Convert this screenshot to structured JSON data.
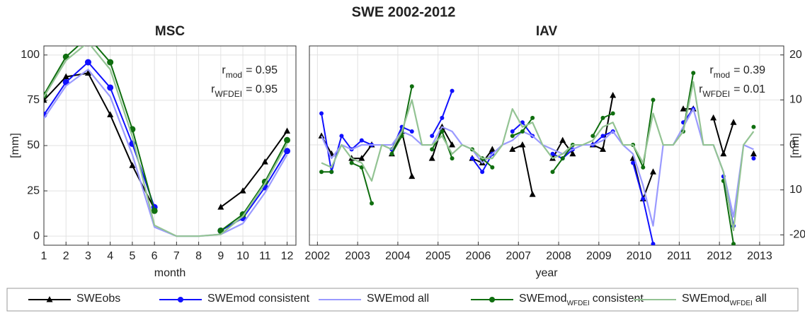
{
  "title": "SWE 2002-2012",
  "chart_data": [
    {
      "type": "line",
      "title": "MSC",
      "xlabel": "month",
      "ylabel": "[mm]",
      "yaxis": "left",
      "grid": true,
      "xlim": [
        1,
        12.4
      ],
      "ylim": [
        -5,
        105
      ],
      "xticks": [
        1,
        2,
        3,
        4,
        5,
        6,
        7,
        8,
        9,
        10,
        11,
        12
      ],
      "yticks": [
        0,
        25,
        50,
        75,
        100
      ],
      "annotations": [
        {
          "text": "r",
          "sub": "mod",
          "rest": "= 0.95"
        },
        {
          "text": "r",
          "sub": "WFDEI",
          "rest": "= 0.95"
        }
      ],
      "x": [
        1,
        2,
        3,
        4,
        5,
        6,
        7,
        8,
        9,
        10,
        11,
        12
      ],
      "series": [
        {
          "name": "SWEobs",
          "color": "#000000",
          "marker": "triangle",
          "values": [
            75,
            88,
            90,
            67,
            39,
            15,
            null,
            null,
            16,
            25,
            41,
            58
          ]
        },
        {
          "name": "SWEmod consistent",
          "color": "#1010ff",
          "marker": "circle",
          "values": [
            67,
            85,
            96,
            82,
            51,
            16,
            null,
            null,
            3,
            10,
            27,
            47
          ]
        },
        {
          "name": "SWEmod all",
          "color": "#9a9aff",
          "values": [
            65,
            83,
            92,
            77,
            45,
            5,
            0,
            0,
            1,
            7,
            24,
            45
          ]
        },
        {
          "name": "SWEmod",
          "name_sub": "WFDEI",
          "name_rest": "consistent",
          "color": "#0f6e0f",
          "marker": "circle",
          "values": [
            78,
            99,
            110,
            96,
            59,
            14,
            null,
            null,
            3,
            12,
            30,
            53
          ]
        },
        {
          "name": "SWEmod",
          "name_sub": "WFDEI",
          "name_rest": "all",
          "color": "#93c393",
          "values": [
            77,
            97,
            107,
            92,
            55,
            6,
            0,
            0,
            1,
            11,
            29,
            51
          ]
        }
      ]
    },
    {
      "type": "line",
      "title": "IAV",
      "xlabel": "year",
      "ylabel": "[mm]",
      "yaxis": "right",
      "grid": true,
      "xlim": [
        2001.8,
        2013.6
      ],
      "ylim": [
        -22.3,
        22
      ],
      "xticks": [
        2002,
        2003,
        2004,
        2005,
        2006,
        2007,
        2008,
        2009,
        2010,
        2011,
        2012,
        2013
      ],
      "yticks": [
        -20,
        {
          "value": -10,
          "label": "10"
        },
        0,
        10,
        20
      ],
      "annotations": [
        {
          "text": "r",
          "sub": "mod",
          "rest": "= 0.39"
        },
        {
          "text": "r",
          "sub": "WFDEI",
          "rest": "= 0.01"
        }
      ],
      "x": [
        2002.1,
        2002.35,
        2002.6,
        2002.85,
        2003.1,
        2003.35,
        2003.6,
        2003.85,
        2004.1,
        2004.35,
        2004.6,
        2004.85,
        2005.1,
        2005.35,
        2005.6,
        2005.85,
        2006.1,
        2006.35,
        2006.6,
        2006.85,
        2007.1,
        2007.35,
        2007.6,
        2007.85,
        2008.1,
        2008.35,
        2008.6,
        2008.85,
        2009.1,
        2009.35,
        2009.6,
        2009.85,
        2010.1,
        2010.35,
        2010.6,
        2010.85,
        2011.1,
        2011.35,
        2011.6,
        2011.85,
        2012.1,
        2012.35,
        2012.6,
        2012.85
      ],
      "series": [
        {
          "color": "#000000",
          "marker": "triangle",
          "values": [
            2,
            -2,
            null,
            -3,
            -3,
            0,
            null,
            -2,
            3,
            -7,
            null,
            -3,
            4,
            0,
            null,
            -3,
            -4,
            -1,
            null,
            -1,
            0,
            -11,
            null,
            -3,
            1,
            -2,
            null,
            0,
            -1,
            11,
            null,
            -3,
            -12,
            -6,
            null,
            null,
            8,
            8,
            null,
            6,
            -2,
            5,
            null,
            -2
          ]
        },
        {
          "color": "#1010ff",
          "marker": "circle",
          "values": [
            7,
            -6,
            2,
            -1,
            1,
            0,
            null,
            -1,
            4,
            3,
            null,
            2,
            6,
            12,
            null,
            -3,
            -6,
            -2,
            null,
            3,
            5,
            2,
            null,
            -2,
            -3,
            -1,
            null,
            0,
            2,
            3,
            null,
            -4,
            -12,
            -22,
            null,
            null,
            5,
            8,
            null,
            null,
            -7,
            -18,
            null,
            -3
          ]
        },
        {
          "color": "#9a9aff",
          "values": [
            2,
            -3,
            0,
            -1,
            0,
            0,
            0,
            0,
            3,
            2,
            0,
            0,
            4,
            3,
            0,
            -1,
            -4,
            -2,
            0,
            1,
            3,
            2,
            0,
            -1,
            -2,
            -1,
            0,
            0,
            1,
            3,
            0,
            -2,
            -9,
            -18,
            0,
            0,
            4,
            8,
            0,
            0,
            -6,
            -16,
            0,
            -1
          ]
        },
        {
          "color": "#0f6e0f",
          "marker": "circle",
          "values": [
            -6,
            -6,
            null,
            -4,
            -5,
            -13,
            null,
            -2,
            2,
            13,
            null,
            -1,
            3,
            -3,
            null,
            -1,
            -3,
            -5,
            null,
            2,
            3,
            6,
            null,
            -6,
            -3,
            0,
            null,
            2,
            6,
            7,
            null,
            0,
            -5,
            10,
            null,
            null,
            3,
            16,
            null,
            null,
            -8,
            -22,
            null,
            4
          ]
        },
        {
          "color": "#93c393",
          "values": [
            -4,
            -5,
            0,
            -3,
            -4,
            -8,
            0,
            -1,
            3,
            10,
            0,
            0,
            2,
            -2,
            0,
            -1,
            -3,
            -3,
            0,
            8,
            4,
            5,
            0,
            -3,
            -2,
            0,
            0,
            1,
            4,
            5,
            0,
            0,
            -4,
            7,
            0,
            0,
            3,
            14,
            0,
            0,
            -6,
            -19,
            0,
            3
          ]
        }
      ]
    }
  ]
}
